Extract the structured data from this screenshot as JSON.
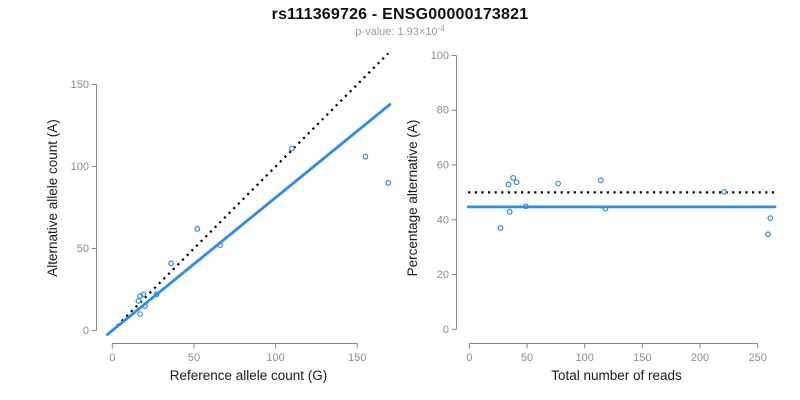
{
  "header": {
    "title": "rs111369726 - ENSG00000173821",
    "subtitle_prefix": "p-value: 1.93×10",
    "subtitle_exponent": "-4"
  },
  "colors": {
    "accent_blue": "#2b8ceb",
    "axis_gray": "#878787",
    "tick_label_gray": "#8c8c8c",
    "axis_title_black": "#1a1a1a",
    "reference_black": "#000000",
    "background": "#ffffff"
  },
  "chart_data": [
    {
      "id": "allele-count-scatter",
      "type": "scatter",
      "xlabel": "Reference allele count (G)",
      "ylabel": "Alternative allele count (A)",
      "xticks": [
        0,
        50,
        100,
        150
      ],
      "yticks": [
        0,
        50,
        100,
        150
      ],
      "xlim": [
        -9.4,
        176.2
      ],
      "ylim": [
        -7.6,
        169.2
      ],
      "grid": false,
      "legend": null,
      "points": [
        [
          17,
          21
        ],
        [
          19,
          22
        ],
        [
          16,
          18
        ],
        [
          20,
          15
        ],
        [
          17,
          10
        ],
        [
          27,
          22
        ],
        [
          36,
          41
        ],
        [
          52,
          62
        ],
        [
          66,
          52
        ],
        [
          110,
          111
        ],
        [
          155,
          106
        ],
        [
          169,
          90
        ]
      ],
      "lines": [
        {
          "name": "identity-line",
          "style": "dotted",
          "color": "#000000",
          "x1": 0,
          "y1": 0,
          "x2": 169,
          "y2": 169
        },
        {
          "name": "fit-line",
          "style": "solid",
          "color": "#2b8ceb",
          "x1": -3,
          "y1": -2.4,
          "x2": 170,
          "y2": 137.8
        }
      ]
    },
    {
      "id": "percentage-reads-scatter",
      "type": "scatter",
      "xlabel": "Total number of reads",
      "ylabel": "Percentage alternative (A)",
      "xticks": [
        0,
        50,
        100,
        150,
        200,
        250
      ],
      "yticks": [
        0,
        20,
        40,
        60,
        80,
        100
      ],
      "xlim": [
        -10.7,
        265.9
      ],
      "ylim": [
        -5.0,
        100.9
      ],
      "grid": false,
      "legend": null,
      "points": [
        [
          38,
          55.3
        ],
        [
          41,
          53.7
        ],
        [
          34,
          52.9
        ],
        [
          35,
          42.9
        ],
        [
          27,
          37.0
        ],
        [
          49,
          44.9
        ],
        [
          77,
          53.2
        ],
        [
          114,
          54.4
        ],
        [
          118,
          44.1
        ],
        [
          221,
          50.2
        ],
        [
          261,
          40.6
        ],
        [
          259,
          34.7
        ]
      ],
      "lines": [
        {
          "name": "expected-percentage-line",
          "style": "dotted",
          "color": "#000000",
          "x1": -1,
          "y1": 50,
          "x2": 265,
          "y2": 50
        },
        {
          "name": "fit-percentage-line",
          "style": "solid",
          "color": "#2b8ceb",
          "x1": -1,
          "y1": 44.7,
          "x2": 265,
          "y2": 44.7
        }
      ]
    }
  ]
}
